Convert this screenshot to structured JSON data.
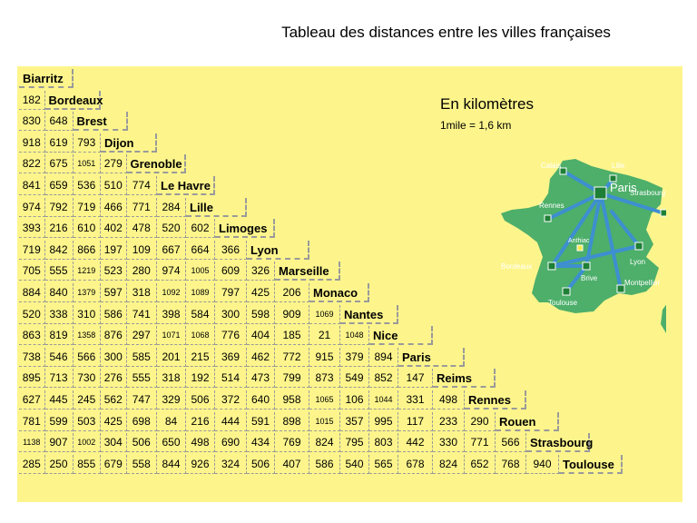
{
  "title": "Tableau des distances entre les villes françaises",
  "unit": "En kilomètres",
  "mile_note": "1mile = 1,6 km",
  "cities": [
    "Biarritz",
    "Bordeaux",
    "Brest",
    "Dijon",
    "Grenoble",
    "Le Havre",
    "Lille",
    "Limoges",
    "Lyon",
    "Marseille",
    "Monaco",
    "Nantes",
    "Nice",
    "Paris",
    "Reims",
    "Rennes",
    "Rouen",
    "Strasbourg",
    "Toulouse"
  ],
  "distances": [
    [],
    [
      "182"
    ],
    [
      "830",
      "648"
    ],
    [
      "918",
      "619",
      "793"
    ],
    [
      "822",
      "675",
      "1051",
      "279"
    ],
    [
      "841",
      "659",
      "536",
      "510",
      "774"
    ],
    [
      "974",
      "792",
      "719",
      "466",
      "771",
      "284"
    ],
    [
      "393",
      "216",
      "610",
      "402",
      "478",
      "520",
      "602"
    ],
    [
      "719",
      "842",
      "866",
      "197",
      "109",
      "667",
      "664",
      "366"
    ],
    [
      "705",
      "555",
      "1219",
      "523",
      "280",
      "974",
      "1005",
      "609",
      "326"
    ],
    [
      "884",
      "840",
      "1379",
      "597",
      "318",
      "1092",
      "1089",
      "797",
      "425",
      "206"
    ],
    [
      "520",
      "338",
      "310",
      "586",
      "741",
      "398",
      "584",
      "300",
      "598",
      "909",
      "1069"
    ],
    [
      "863",
      "819",
      "1358",
      "876",
      "297",
      "1071",
      "1068",
      "776",
      "404",
      "185",
      "21",
      "1048"
    ],
    [
      "738",
      "546",
      "566",
      "300",
      "585",
      "201",
      "215",
      "369",
      "462",
      "772",
      "915",
      "379",
      "894"
    ],
    [
      "895",
      "713",
      "730",
      "276",
      "555",
      "318",
      "192",
      "514",
      "473",
      "799",
      "873",
      "549",
      "852",
      "147"
    ],
    [
      "627",
      "445",
      "245",
      "562",
      "747",
      "329",
      "506",
      "372",
      "640",
      "958",
      "1065",
      "106",
      "1044",
      "331",
      "498"
    ],
    [
      "781",
      "599",
      "503",
      "425",
      "698",
      "84",
      "216",
      "444",
      "591",
      "898",
      "1015",
      "357",
      "995",
      "117",
      "233",
      "290"
    ],
    [
      "1138",
      "907",
      "1002",
      "304",
      "506",
      "650",
      "498",
      "690",
      "434",
      "769",
      "824",
      "795",
      "803",
      "442",
      "330",
      "771",
      "566"
    ],
    [
      "285",
      "250",
      "855",
      "679",
      "558",
      "844",
      "926",
      "324",
      "506",
      "407",
      "586",
      "540",
      "565",
      "678",
      "824",
      "652",
      "768",
      "940"
    ]
  ],
  "map": {
    "labels": [
      "Calais",
      "Lille",
      "Paris",
      "Rennes",
      "Strasbourg",
      "Anthiac",
      "Bordeaux",
      "Lyon",
      "Brive",
      "Montpellier",
      "Toulouse"
    ],
    "colors": {
      "land": "#4daf6a",
      "route": "#3d8fd0",
      "node": "#1e7f36",
      "sea": "#fdf58c"
    }
  }
}
